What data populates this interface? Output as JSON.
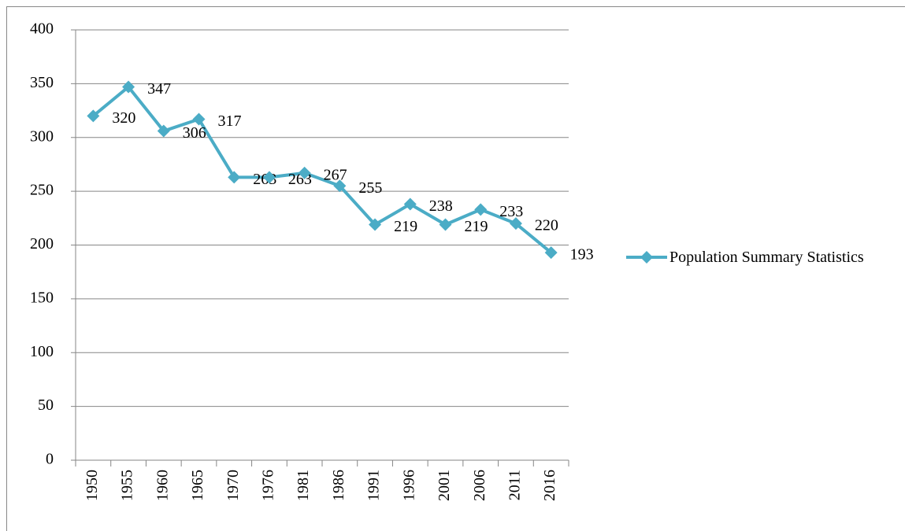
{
  "chart_data": {
    "type": "line",
    "categories": [
      "1950",
      "1955",
      "1960",
      "1965",
      "1970",
      "1976",
      "1981",
      "1986",
      "1991",
      "1996",
      "2001",
      "2006",
      "2011",
      "2016"
    ],
    "series": [
      {
        "name": "Population Summary Statistics",
        "color": "#4bacc6",
        "values": [
          320,
          347,
          306,
          317,
          263,
          263,
          267,
          255,
          219,
          238,
          219,
          233,
          220,
          193
        ]
      }
    ],
    "ylim": [
      0,
      400
    ],
    "yticks": [
      0,
      50,
      100,
      150,
      200,
      250,
      300,
      350,
      400
    ],
    "grid": true,
    "legend": "right",
    "data_labels": true
  }
}
